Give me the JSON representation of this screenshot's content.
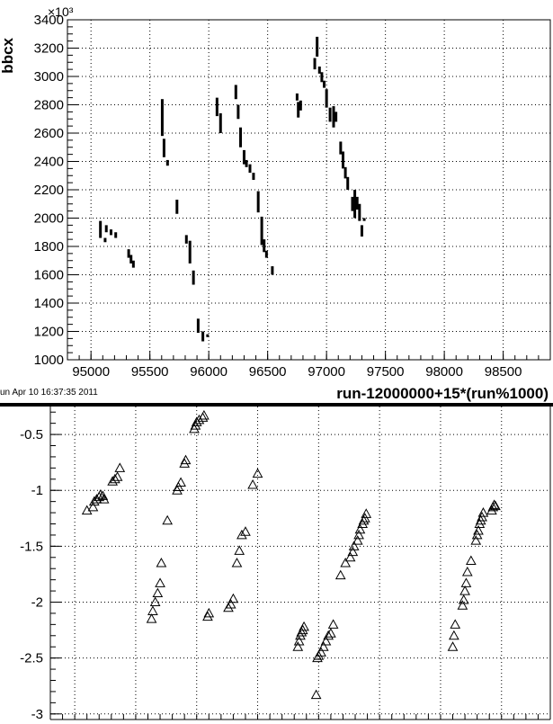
{
  "timestamp": "un Apr 10 16:37:35 2011",
  "chart_data": [
    {
      "type": "scatter",
      "xlabel": "run-12000000+15*(run%1000)",
      "ylabel": "bbcx",
      "y_exponent": "×10³",
      "xlim": [
        94800,
        98900
      ],
      "ylim": [
        1000,
        3400
      ],
      "xticks": [
        95000,
        95500,
        96000,
        96500,
        97000,
        97500,
        98000,
        98500
      ],
      "yticks": [
        1000,
        1200,
        1400,
        1600,
        1800,
        2000,
        2200,
        2400,
        2600,
        2800,
        3000,
        3200,
        3400
      ],
      "grid": true,
      "marker": "segment",
      "segments": [
        [
          95080,
          1860,
          1980
        ],
        [
          95120,
          1830,
          1860
        ],
        [
          95130,
          1900,
          1950
        ],
        [
          95170,
          1880,
          1920
        ],
        [
          95210,
          1860,
          1900
        ],
        [
          95320,
          1720,
          1780
        ],
        [
          95340,
          1680,
          1740
        ],
        [
          95360,
          1650,
          1700
        ],
        [
          95605,
          2580,
          2840
        ],
        [
          95620,
          2430,
          2560
        ],
        [
          95650,
          2370,
          2410
        ],
        [
          95730,
          2030,
          2130
        ],
        [
          95810,
          1820,
          1880
        ],
        [
          95840,
          1680,
          1840
        ],
        [
          95870,
          1530,
          1630
        ],
        [
          95910,
          1190,
          1290
        ],
        [
          95950,
          1130,
          1200
        ],
        [
          95990,
          1160,
          1180
        ],
        [
          96070,
          2720,
          2850
        ],
        [
          96100,
          2600,
          2740
        ],
        [
          96230,
          2840,
          2940
        ],
        [
          96250,
          2700,
          2800
        ],
        [
          96270,
          2500,
          2640
        ],
        [
          96300,
          2380,
          2480
        ],
        [
          96320,
          2360,
          2410
        ],
        [
          96350,
          2320,
          2380
        ],
        [
          96380,
          2270,
          2320
        ],
        [
          96420,
          2040,
          2190
        ],
        [
          96450,
          1810,
          2010
        ],
        [
          96470,
          1760,
          1850
        ],
        [
          96490,
          1720,
          1770
        ],
        [
          96540,
          1600,
          1660
        ],
        [
          96750,
          2830,
          2880
        ],
        [
          96760,
          2710,
          2820
        ],
        [
          96780,
          2760,
          2830
        ],
        [
          96900,
          3050,
          3130
        ],
        [
          96920,
          3140,
          3280
        ],
        [
          96940,
          3020,
          3070
        ],
        [
          96960,
          2960,
          3030
        ],
        [
          96980,
          2920,
          2970
        ],
        [
          97000,
          2780,
          2910
        ],
        [
          97030,
          2680,
          2780
        ],
        [
          97060,
          2640,
          2790
        ],
        [
          97080,
          2680,
          2750
        ],
        [
          97120,
          2450,
          2540
        ],
        [
          97140,
          2350,
          2470
        ],
        [
          97160,
          2280,
          2360
        ],
        [
          97180,
          2200,
          2290
        ],
        [
          97220,
          2050,
          2150
        ],
        [
          97240,
          2000,
          2200
        ],
        [
          97260,
          2060,
          2150
        ],
        [
          97280,
          1980,
          2100
        ],
        [
          97300,
          1870,
          1950
        ],
        [
          97320,
          1980,
          2000
        ]
      ]
    },
    {
      "type": "scatter",
      "xlim": [
        94800,
        98900
      ],
      "ylim": [
        -3.05,
        -0.25
      ],
      "yticks": [
        -3,
        -2.5,
        -2,
        -1.5,
        -1,
        -0.5
      ],
      "yticklabels": [
        "-3",
        "-2.5",
        "-2",
        "-1.5",
        "-1",
        "-0.5"
      ],
      "grid": true,
      "marker": "triangle-open",
      "points": [
        [
          95100,
          -1.18
        ],
        [
          95150,
          -1.15
        ],
        [
          95160,
          -1.1
        ],
        [
          95180,
          -1.08
        ],
        [
          95200,
          -1.06
        ],
        [
          95210,
          -1.04
        ],
        [
          95230,
          -1.05
        ],
        [
          95240,
          -1.08
        ],
        [
          95310,
          -0.92
        ],
        [
          95330,
          -0.9
        ],
        [
          95350,
          -0.88
        ],
        [
          95370,
          -0.8
        ],
        [
          95630,
          -2.15
        ],
        [
          95640,
          -2.08
        ],
        [
          95660,
          -2.0
        ],
        [
          95680,
          -1.92
        ],
        [
          95700,
          -1.83
        ],
        [
          95710,
          -1.65
        ],
        [
          95760,
          -1.27
        ],
        [
          95840,
          -1.0
        ],
        [
          95850,
          -0.97
        ],
        [
          95870,
          -0.93
        ],
        [
          95900,
          -0.76
        ],
        [
          95910,
          -0.73
        ],
        [
          95980,
          -0.45
        ],
        [
          95990,
          -0.42
        ],
        [
          96000,
          -0.39
        ],
        [
          96020,
          -0.37
        ],
        [
          96050,
          -0.35
        ],
        [
          96060,
          -0.33
        ],
        [
          96090,
          -2.13
        ],
        [
          96100,
          -2.1
        ],
        [
          96260,
          -2.05
        ],
        [
          96280,
          -2.02
        ],
        [
          96300,
          -1.97
        ],
        [
          96330,
          -1.65
        ],
        [
          96350,
          -1.54
        ],
        [
          96370,
          -1.4
        ],
        [
          96400,
          -1.37
        ],
        [
          96460,
          -0.95
        ],
        [
          96500,
          -0.85
        ],
        [
          96830,
          -2.4
        ],
        [
          96840,
          -2.35
        ],
        [
          96850,
          -2.3
        ],
        [
          96860,
          -2.27
        ],
        [
          96870,
          -2.25
        ],
        [
          96880,
          -2.22
        ],
        [
          96990,
          -2.5
        ],
        [
          97000,
          -2.48
        ],
        [
          97020,
          -2.45
        ],
        [
          97040,
          -2.4
        ],
        [
          97060,
          -2.35
        ],
        [
          97080,
          -2.3
        ],
        [
          97100,
          -2.28
        ],
        [
          97120,
          -2.2
        ],
        [
          96980,
          -2.83
        ],
        [
          97180,
          -1.76
        ],
        [
          97220,
          -1.65
        ],
        [
          97260,
          -1.6
        ],
        [
          97280,
          -1.55
        ],
        [
          97290,
          -1.5
        ],
        [
          97320,
          -1.45
        ],
        [
          97330,
          -1.4
        ],
        [
          97340,
          -1.35
        ],
        [
          97360,
          -1.3
        ],
        [
          97370,
          -1.27
        ],
        [
          97380,
          -1.25
        ],
        [
          97390,
          -1.21
        ],
        [
          98100,
          -2.4
        ],
        [
          98110,
          -2.3
        ],
        [
          98120,
          -2.2
        ],
        [
          98180,
          -2.03
        ],
        [
          98190,
          -1.98
        ],
        [
          98200,
          -1.9
        ],
        [
          98210,
          -1.83
        ],
        [
          98220,
          -1.73
        ],
        [
          98250,
          -1.63
        ],
        [
          98290,
          -1.45
        ],
        [
          98300,
          -1.4
        ],
        [
          98310,
          -1.36
        ],
        [
          98320,
          -1.3
        ],
        [
          98330,
          -1.27
        ],
        [
          98340,
          -1.24
        ],
        [
          98350,
          -1.2
        ],
        [
          98420,
          -1.18
        ],
        [
          98430,
          -1.15
        ],
        [
          98440,
          -1.13
        ],
        [
          98450,
          -1.14
        ]
      ]
    }
  ]
}
